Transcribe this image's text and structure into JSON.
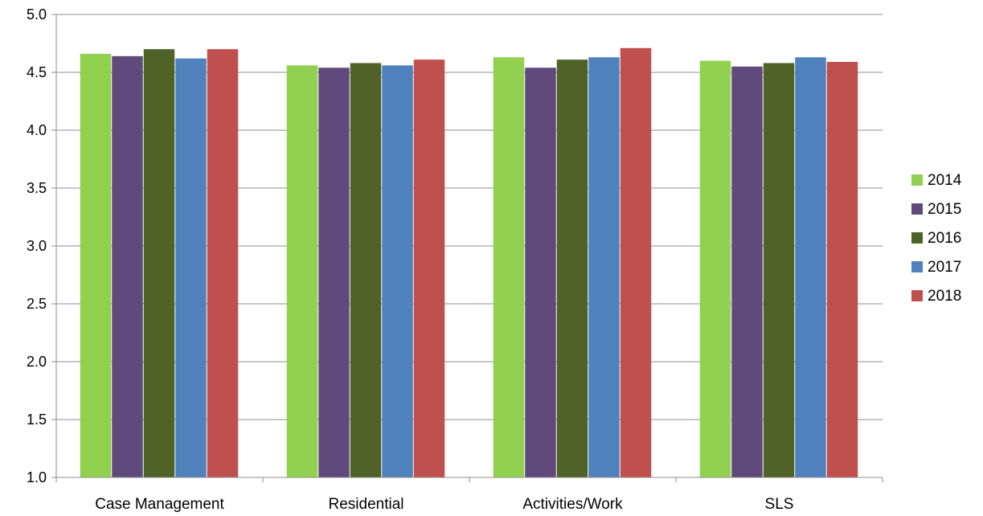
{
  "chart_data": {
    "type": "bar",
    "categories": [
      "Case Management",
      "Residential",
      "Activities/Work",
      "SLS"
    ],
    "series": [
      {
        "name": "2014",
        "color": "#92D050",
        "values": [
          4.66,
          4.56,
          4.63,
          4.6
        ]
      },
      {
        "name": "2015",
        "color": "#604A7B",
        "values": [
          4.64,
          4.54,
          4.54,
          4.55
        ]
      },
      {
        "name": "2016",
        "color": "#4F6228",
        "values": [
          4.7,
          4.58,
          4.61,
          4.58
        ]
      },
      {
        "name": "2017",
        "color": "#4F81BD",
        "values": [
          4.62,
          4.56,
          4.63,
          4.63
        ]
      },
      {
        "name": "2018",
        "color": "#C0504D",
        "values": [
          4.7,
          4.61,
          4.71,
          4.59
        ]
      }
    ],
    "yticks": [
      "1.0",
      "1.5",
      "2.0",
      "2.5",
      "3.0",
      "3.5",
      "4.0",
      "4.5",
      "5.0"
    ],
    "ylim": [
      1.0,
      5.0
    ],
    "grid": true,
    "legend": "right"
  }
}
